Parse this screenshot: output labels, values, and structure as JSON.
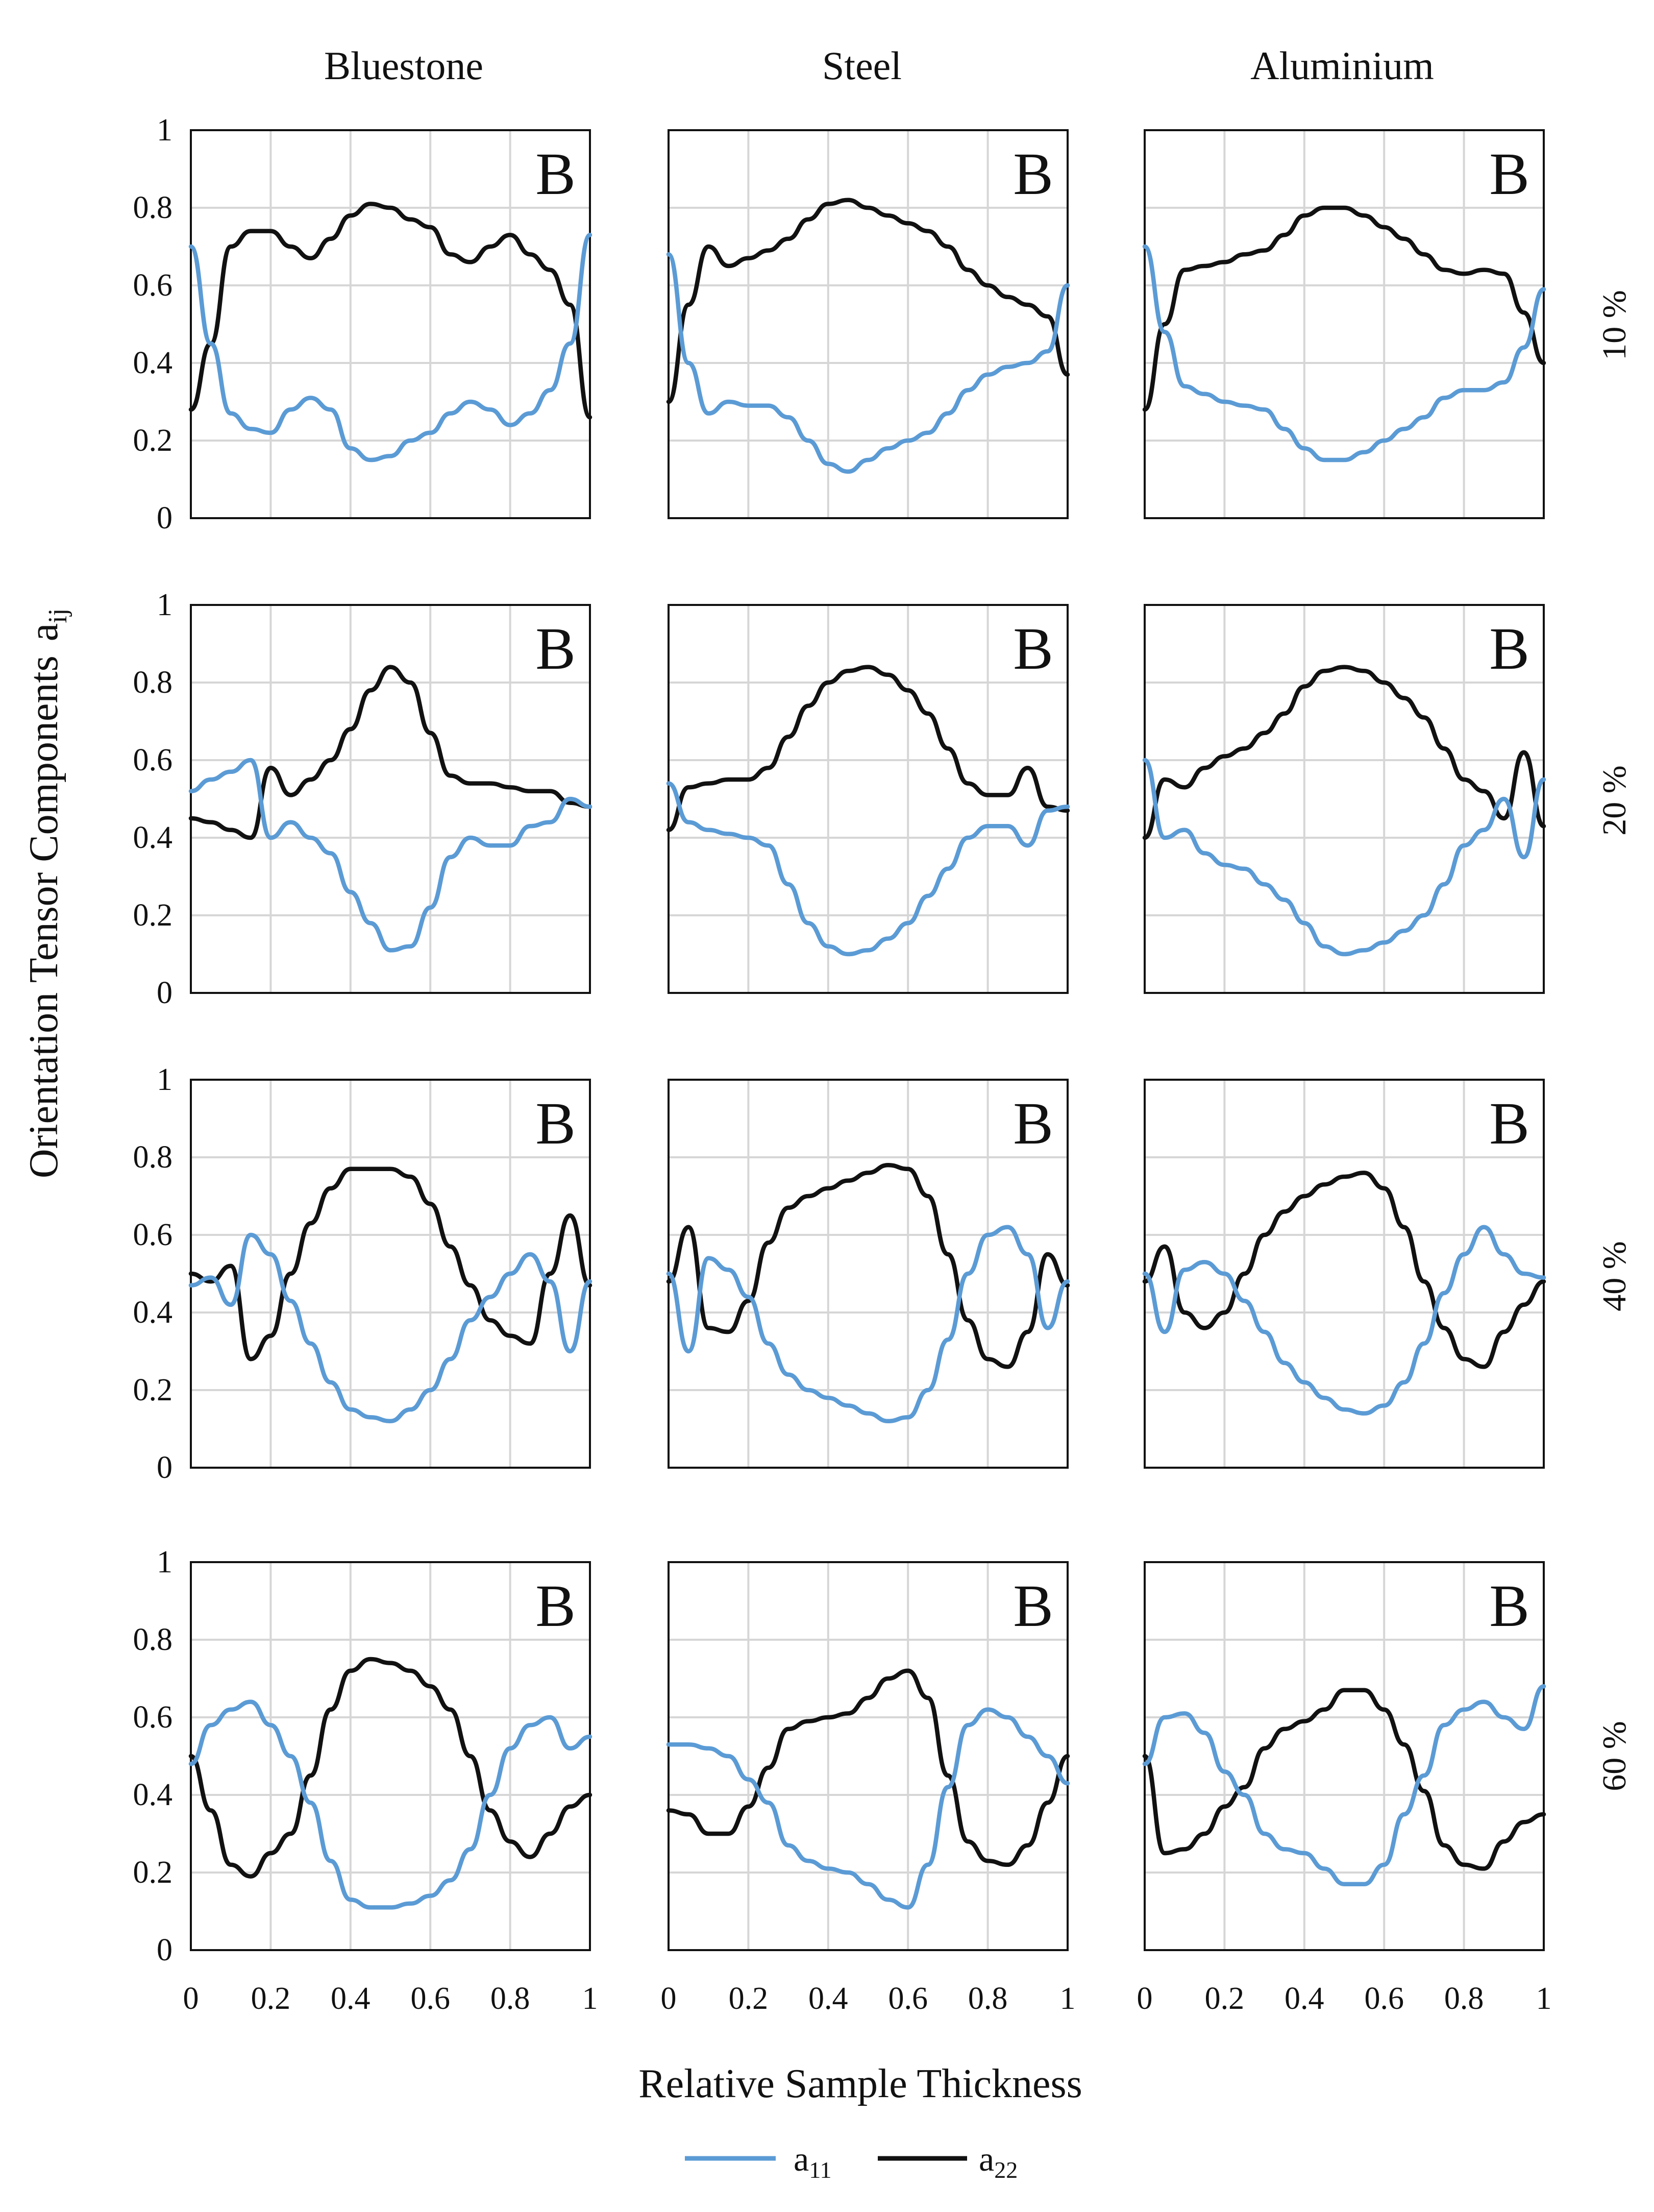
{
  "figure": {
    "x_axis_title": "Relative Sample Thickness",
    "y_axis_title": "Orientation Tensor Components",
    "y_axis_title_symbol": "a",
    "y_axis_title_subscript": "ij",
    "columns": [
      "Bluestone",
      "Steel",
      "Aluminium"
    ],
    "rows": [
      "10 %",
      "20 %",
      "40 %",
      "60 %"
    ],
    "panel_letter": "B",
    "x_tick_labels": [
      "0",
      "0.2",
      "0.4",
      "0.6",
      "0.8",
      "1"
    ],
    "y_tick_labels": [
      "0",
      "0.2",
      "0.4",
      "0.6",
      "0.8",
      "1"
    ],
    "legend": [
      {
        "symbol": "a",
        "subscript": "11",
        "color": "#5b9bd5"
      },
      {
        "symbol": "a",
        "subscript": "22",
        "color": "#111111"
      }
    ]
  },
  "chart_data": {
    "type": "line",
    "xlim": [
      0,
      1
    ],
    "ylim": [
      0,
      1
    ],
    "grid": true,
    "xlabel": "Relative Sample Thickness",
    "ylabel": "Orientation Tensor Components aij",
    "series_names": [
      "a11",
      "a22"
    ],
    "x": [
      0,
      0.05,
      0.1,
      0.15,
      0.2,
      0.25,
      0.3,
      0.35,
      0.4,
      0.45,
      0.5,
      0.55,
      0.6,
      0.65,
      0.7,
      0.75,
      0.8,
      0.85,
      0.9,
      0.95,
      1.0
    ],
    "panels": [
      {
        "column": "Bluestone",
        "row": "10 %",
        "a11": [
          0.7,
          0.45,
          0.27,
          0.23,
          0.22,
          0.28,
          0.31,
          0.28,
          0.18,
          0.15,
          0.16,
          0.2,
          0.22,
          0.27,
          0.3,
          0.28,
          0.24,
          0.27,
          0.33,
          0.45,
          0.73
        ],
        "a22": [
          0.28,
          0.45,
          0.7,
          0.74,
          0.74,
          0.7,
          0.67,
          0.72,
          0.78,
          0.81,
          0.8,
          0.77,
          0.75,
          0.68,
          0.66,
          0.7,
          0.73,
          0.68,
          0.64,
          0.55,
          0.26
        ]
      },
      {
        "column": "Steel",
        "row": "10 %",
        "a11": [
          0.68,
          0.4,
          0.27,
          0.3,
          0.29,
          0.29,
          0.26,
          0.2,
          0.14,
          0.12,
          0.15,
          0.18,
          0.2,
          0.22,
          0.27,
          0.33,
          0.37,
          0.39,
          0.4,
          0.43,
          0.6
        ],
        "a22": [
          0.3,
          0.55,
          0.7,
          0.65,
          0.67,
          0.69,
          0.72,
          0.77,
          0.81,
          0.82,
          0.8,
          0.78,
          0.76,
          0.74,
          0.7,
          0.64,
          0.6,
          0.57,
          0.55,
          0.52,
          0.37
        ]
      },
      {
        "column": "Aluminium",
        "row": "10 %",
        "a11": [
          0.7,
          0.48,
          0.34,
          0.32,
          0.3,
          0.29,
          0.28,
          0.23,
          0.18,
          0.15,
          0.15,
          0.17,
          0.2,
          0.23,
          0.26,
          0.31,
          0.33,
          0.33,
          0.35,
          0.44,
          0.59
        ],
        "a22": [
          0.28,
          0.5,
          0.64,
          0.65,
          0.66,
          0.68,
          0.69,
          0.73,
          0.78,
          0.8,
          0.8,
          0.78,
          0.75,
          0.72,
          0.68,
          0.64,
          0.63,
          0.64,
          0.63,
          0.53,
          0.4
        ]
      },
      {
        "column": "Bluestone",
        "row": "20 %",
        "a11": [
          0.52,
          0.55,
          0.57,
          0.6,
          0.4,
          0.44,
          0.4,
          0.36,
          0.26,
          0.18,
          0.11,
          0.12,
          0.22,
          0.35,
          0.4,
          0.38,
          0.38,
          0.43,
          0.44,
          0.5,
          0.48
        ],
        "a22": [
          0.45,
          0.44,
          0.42,
          0.4,
          0.58,
          0.51,
          0.55,
          0.6,
          0.68,
          0.78,
          0.84,
          0.8,
          0.67,
          0.56,
          0.54,
          0.54,
          0.53,
          0.52,
          0.52,
          0.49,
          0.48
        ]
      },
      {
        "column": "Steel",
        "row": "20 %",
        "a11": [
          0.54,
          0.44,
          0.42,
          0.41,
          0.4,
          0.38,
          0.28,
          0.18,
          0.12,
          0.1,
          0.11,
          0.14,
          0.18,
          0.25,
          0.32,
          0.4,
          0.43,
          0.43,
          0.38,
          0.47,
          0.48
        ],
        "a22": [
          0.42,
          0.53,
          0.54,
          0.55,
          0.55,
          0.58,
          0.66,
          0.74,
          0.8,
          0.83,
          0.84,
          0.82,
          0.78,
          0.72,
          0.63,
          0.54,
          0.51,
          0.51,
          0.58,
          0.48,
          0.47
        ]
      },
      {
        "column": "Aluminium",
        "row": "20 %",
        "a11": [
          0.6,
          0.4,
          0.42,
          0.36,
          0.33,
          0.32,
          0.28,
          0.24,
          0.18,
          0.12,
          0.1,
          0.11,
          0.13,
          0.16,
          0.2,
          0.28,
          0.38,
          0.42,
          0.5,
          0.35,
          0.55
        ],
        "a22": [
          0.4,
          0.55,
          0.53,
          0.58,
          0.61,
          0.63,
          0.67,
          0.72,
          0.79,
          0.83,
          0.84,
          0.83,
          0.8,
          0.76,
          0.71,
          0.63,
          0.55,
          0.52,
          0.45,
          0.62,
          0.43
        ]
      },
      {
        "column": "Bluestone",
        "row": "40 %",
        "a11": [
          0.47,
          0.49,
          0.42,
          0.6,
          0.55,
          0.43,
          0.32,
          0.22,
          0.15,
          0.13,
          0.12,
          0.15,
          0.2,
          0.28,
          0.38,
          0.44,
          0.5,
          0.55,
          0.48,
          0.3,
          0.48
        ],
        "a22": [
          0.5,
          0.48,
          0.52,
          0.28,
          0.34,
          0.5,
          0.63,
          0.72,
          0.77,
          0.77,
          0.77,
          0.75,
          0.68,
          0.57,
          0.47,
          0.38,
          0.34,
          0.32,
          0.5,
          0.65,
          0.47
        ]
      },
      {
        "column": "Steel",
        "row": "40 %",
        "a11": [
          0.5,
          0.3,
          0.54,
          0.51,
          0.44,
          0.32,
          0.24,
          0.2,
          0.18,
          0.16,
          0.14,
          0.12,
          0.13,
          0.2,
          0.33,
          0.5,
          0.6,
          0.62,
          0.55,
          0.36,
          0.48
        ],
        "a22": [
          0.48,
          0.62,
          0.36,
          0.35,
          0.43,
          0.58,
          0.67,
          0.7,
          0.72,
          0.74,
          0.76,
          0.78,
          0.77,
          0.7,
          0.55,
          0.38,
          0.28,
          0.26,
          0.35,
          0.55,
          0.47
        ]
      },
      {
        "column": "Aluminium",
        "row": "40 %",
        "a11": [
          0.5,
          0.35,
          0.51,
          0.53,
          0.5,
          0.43,
          0.35,
          0.27,
          0.22,
          0.18,
          0.15,
          0.14,
          0.16,
          0.22,
          0.32,
          0.45,
          0.55,
          0.62,
          0.55,
          0.5,
          0.49
        ],
        "a22": [
          0.48,
          0.57,
          0.4,
          0.36,
          0.4,
          0.5,
          0.6,
          0.66,
          0.7,
          0.73,
          0.75,
          0.76,
          0.72,
          0.62,
          0.48,
          0.36,
          0.28,
          0.26,
          0.35,
          0.42,
          0.48
        ]
      },
      {
        "column": "Bluestone",
        "row": "60 %",
        "a11": [
          0.48,
          0.58,
          0.62,
          0.64,
          0.58,
          0.5,
          0.38,
          0.23,
          0.13,
          0.11,
          0.11,
          0.12,
          0.14,
          0.18,
          0.26,
          0.4,
          0.52,
          0.58,
          0.6,
          0.52,
          0.55
        ],
        "a22": [
          0.5,
          0.36,
          0.22,
          0.19,
          0.25,
          0.3,
          0.45,
          0.62,
          0.72,
          0.75,
          0.74,
          0.72,
          0.68,
          0.62,
          0.5,
          0.36,
          0.28,
          0.24,
          0.3,
          0.37,
          0.4
        ]
      },
      {
        "column": "Steel",
        "row": "60 %",
        "a11": [
          0.53,
          0.53,
          0.52,
          0.5,
          0.44,
          0.38,
          0.27,
          0.23,
          0.21,
          0.2,
          0.17,
          0.13,
          0.11,
          0.22,
          0.42,
          0.58,
          0.62,
          0.6,
          0.55,
          0.5,
          0.43
        ],
        "a22": [
          0.36,
          0.35,
          0.3,
          0.3,
          0.37,
          0.47,
          0.57,
          0.59,
          0.6,
          0.61,
          0.65,
          0.7,
          0.72,
          0.65,
          0.45,
          0.28,
          0.23,
          0.22,
          0.27,
          0.38,
          0.5
        ]
      },
      {
        "column": "Aluminium",
        "row": "60 %",
        "a11": [
          0.48,
          0.6,
          0.61,
          0.56,
          0.46,
          0.4,
          0.3,
          0.26,
          0.25,
          0.21,
          0.17,
          0.17,
          0.22,
          0.35,
          0.45,
          0.58,
          0.62,
          0.64,
          0.6,
          0.57,
          0.68
        ],
        "a22": [
          0.5,
          0.25,
          0.26,
          0.3,
          0.37,
          0.42,
          0.52,
          0.57,
          0.59,
          0.62,
          0.67,
          0.67,
          0.62,
          0.53,
          0.41,
          0.27,
          0.22,
          0.21,
          0.28,
          0.33,
          0.35
        ]
      }
    ]
  }
}
